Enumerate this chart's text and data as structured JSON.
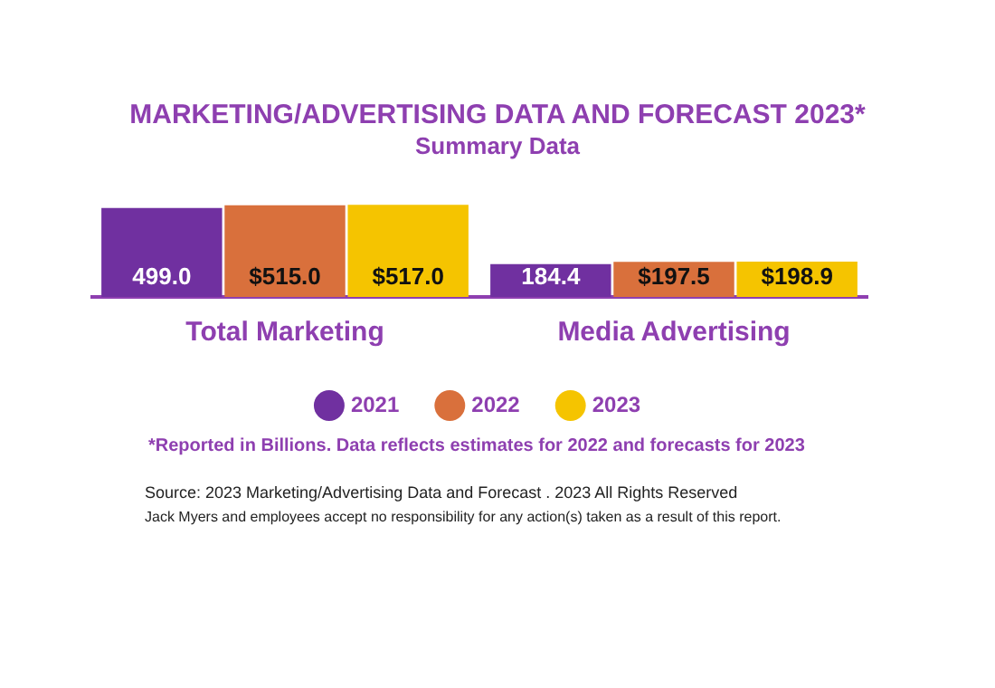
{
  "chart_data": {
    "type": "bar",
    "title": "MARKETING/ADVERTISING DATA AND FORECAST 2023*",
    "subtitle": "Summary Data",
    "categories": [
      "Total Marketing",
      "Media Advertising"
    ],
    "series": [
      {
        "name": "2021",
        "color": "#7030a0",
        "values": [
          499.0,
          184.4
        ],
        "value_labels": [
          "499.0",
          "184.4"
        ]
      },
      {
        "name": "2022",
        "color": "#d9703c",
        "values": [
          515.0,
          197.5
        ],
        "value_labels": [
          "$515.0",
          "$197.5"
        ]
      },
      {
        "name": "2023",
        "color": "#f5c400",
        "values": [
          517.0,
          198.9
        ],
        "value_labels": [
          "$517.0",
          "$198.9"
        ]
      }
    ],
    "grid": false,
    "legend": "bottom",
    "annotations": [
      "*Reported in Billions. Data reflects estimates for 2022 and forecasts for 2023",
      "Source: 2023 Marketing/Advertising Data and Forecast . 2023 All Rights Reserved",
      "Jack Myers and employees accept no responsibility for any action(s) taken as a result of this report."
    ]
  }
}
